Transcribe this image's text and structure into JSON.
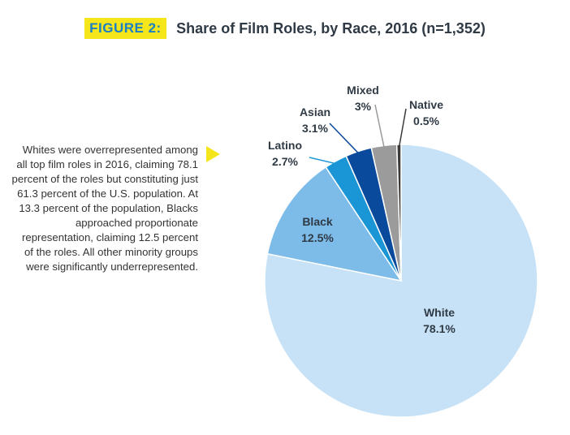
{
  "header": {
    "figure_label": "FIGURE 2:",
    "title": "Share of Film Roles, by Race, 2016 (n=1,352)"
  },
  "caption": "Whites were overrepresented among all top film roles in 2016, claiming 78.1 percent of the roles but constituting just 61.3 percent of the U.S. population. At 13.3 percent of the population, Blacks approached proportionate representation, claiming 12.5 percent of the roles. All other minority groups were significantly underrepresented.",
  "colors": {
    "figure_label_bg": "#f5e61c",
    "figure_label_text": "#1a7fc4",
    "arrow": "#f5e61c"
  },
  "chart_data": {
    "type": "pie",
    "title": "Share of Film Roles, by Race, 2016 (n=1,352)",
    "slices": [
      {
        "name": "White",
        "value": 78.1,
        "label": "78.1%",
        "color": "#c7e2f6"
      },
      {
        "name": "Black",
        "value": 12.5,
        "label": "12.5%",
        "color": "#7dbbe9"
      },
      {
        "name": "Latino",
        "value": 2.7,
        "label": "2.7%",
        "color": "#1a95d6"
      },
      {
        "name": "Asian",
        "value": 3.1,
        "label": "3.1%",
        "color": "#0a4a9c"
      },
      {
        "name": "Mixed",
        "value": 3.0,
        "label": "3%",
        "color": "#9b9b9b"
      },
      {
        "name": "Native",
        "value": 0.5,
        "label": "0.5%",
        "color": "#3a3a3a"
      }
    ],
    "start_angle_deg": 0,
    "direction": "clockwise",
    "legend": "none"
  }
}
